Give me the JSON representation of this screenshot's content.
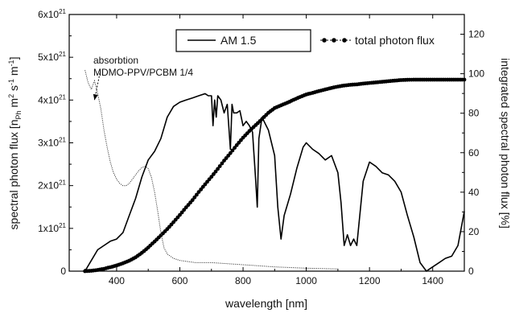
{
  "chart_data": {
    "type": "line",
    "xlabel": "wavelength [nm]",
    "ylabel_left_parts": [
      "spectral photon flux [n",
      "Ph",
      " m",
      "2",
      " s",
      "-1",
      " m",
      "-1",
      "]"
    ],
    "ylabel_right": "integrated spectral photon flux [%]",
    "xlim": [
      250,
      1500
    ],
    "ylim_left": [
      0,
      6
    ],
    "ylim_right": [
      0,
      130
    ],
    "x_ticks": [
      {
        "value": 400,
        "label": "400"
      },
      {
        "value": 600,
        "label": "600"
      },
      {
        "value": 800,
        "label": "800"
      },
      {
        "value": 1000,
        "label": "1000"
      },
      {
        "value": 1200,
        "label": "1200"
      },
      {
        "value": 1400,
        "label": "1400"
      }
    ],
    "y_left_ticks": [
      {
        "value": 0,
        "label": "0",
        "exp": ""
      },
      {
        "value": 1,
        "label": "1x10",
        "exp": "21"
      },
      {
        "value": 2,
        "label": "2x10",
        "exp": "21"
      },
      {
        "value": 3,
        "label": "3x10",
        "exp": "21"
      },
      {
        "value": 4,
        "label": "4x10",
        "exp": "21"
      },
      {
        "value": 5,
        "label": "5x10",
        "exp": "21"
      },
      {
        "value": 6,
        "label": "6x10",
        "exp": "21"
      }
    ],
    "y_right_ticks": [
      {
        "value": 0,
        "label": "0"
      },
      {
        "value": 20,
        "label": "20"
      },
      {
        "value": 40,
        "label": "40"
      },
      {
        "value": 60,
        "label": "60"
      },
      {
        "value": 80,
        "label": "80"
      },
      {
        "value": 100,
        "label": "100"
      },
      {
        "value": 120,
        "label": "120"
      }
    ],
    "legend": {
      "am15": "AM 1.5",
      "total": "total photon flux"
    },
    "annotation": {
      "line1": "absorbtion",
      "line2": "MDMO-PPV/PCBM 1/4",
      "arrow_from": [
        347,
        4.63
      ],
      "arrow_to": [
        330,
        4.0
      ]
    },
    "series": [
      {
        "name": "AM 1.5",
        "axis": "left",
        "style": "solid",
        "color": "#000000",
        "x": [
          300,
          320,
          340,
          360,
          380,
          400,
          420,
          440,
          460,
          480,
          500,
          520,
          540,
          560,
          580,
          600,
          620,
          640,
          660,
          680,
          690,
          700,
          705,
          710,
          715,
          720,
          730,
          740,
          750,
          760,
          765,
          770,
          780,
          790,
          800,
          810,
          820,
          830,
          840,
          845,
          850,
          860,
          870,
          880,
          890,
          900,
          910,
          920,
          930,
          950,
          970,
          990,
          1000,
          1020,
          1040,
          1060,
          1080,
          1100,
          1110,
          1120,
          1130,
          1140,
          1150,
          1160,
          1180,
          1200,
          1220,
          1240,
          1260,
          1280,
          1300,
          1320,
          1340,
          1360,
          1380,
          1390,
          1400,
          1420,
          1440,
          1460,
          1480,
          1500
        ],
        "y": [
          0,
          0.25,
          0.5,
          0.6,
          0.7,
          0.75,
          0.9,
          1.3,
          1.7,
          2.2,
          2.6,
          2.8,
          3.1,
          3.6,
          3.85,
          3.95,
          4.0,
          4.05,
          4.1,
          4.15,
          4.1,
          4.1,
          3.4,
          4.0,
          3.6,
          4.1,
          4.0,
          3.7,
          3.9,
          2.85,
          3.9,
          3.7,
          3.7,
          3.75,
          3.4,
          3.5,
          3.4,
          3.25,
          2.1,
          1.5,
          3.1,
          3.6,
          3.45,
          3.3,
          3.0,
          2.7,
          1.5,
          0.75,
          1.3,
          1.8,
          2.4,
          2.9,
          3.0,
          2.85,
          2.75,
          2.6,
          2.7,
          2.3,
          1.6,
          0.6,
          0.85,
          0.6,
          0.75,
          0.6,
          2.1,
          2.55,
          2.45,
          2.3,
          2.25,
          2.1,
          1.85,
          1.3,
          0.8,
          0.2,
          0.0,
          0.05,
          0.1,
          0.2,
          0.3,
          0.35,
          0.6,
          1.4
        ]
      },
      {
        "name": "total photon flux",
        "axis": "right",
        "style": "dotted-markers",
        "color": "#000000",
        "x": [
          300,
          320,
          340,
          360,
          380,
          400,
          420,
          440,
          460,
          480,
          500,
          520,
          540,
          560,
          580,
          600,
          620,
          640,
          660,
          680,
          700,
          720,
          740,
          760,
          780,
          800,
          820,
          840,
          860,
          880,
          900,
          920,
          940,
          960,
          980,
          1000,
          1020,
          1040,
          1060,
          1080,
          1100,
          1120,
          1140,
          1160,
          1180,
          1200,
          1220,
          1240,
          1260,
          1280,
          1300,
          1320,
          1340,
          1360,
          1380,
          1400,
          1420,
          1440,
          1460,
          1480,
          1500
        ],
        "y": [
          0,
          0.2,
          0.6,
          1.2,
          2.0,
          2.9,
          4.0,
          5.3,
          7.0,
          9.3,
          12.0,
          15.0,
          18.1,
          21.3,
          24.8,
          28.5,
          32.3,
          36.0,
          40.1,
          44.0,
          47.8,
          51.8,
          56.0,
          59.8,
          63.8,
          67.6,
          71.0,
          74.0,
          77.0,
          80.2,
          82.6,
          84.0,
          85.3,
          86.8,
          88.2,
          89.5,
          90.3,
          91.2,
          92.0,
          92.8,
          93.5,
          94.0,
          94.4,
          94.6,
          95.0,
          95.3,
          95.6,
          95.9,
          96.2,
          96.5,
          96.8,
          96.9,
          97.0,
          97.0,
          97.0,
          97.0,
          97.0,
          97.0,
          97.0,
          97.0,
          97.0
        ]
      },
      {
        "name": "absorbtion MDMO-PPV/PCBM 1/4",
        "axis": "left",
        "style": "dotted",
        "color": "#000000",
        "x": [
          300,
          310,
          320,
          330,
          340,
          350,
          360,
          370,
          380,
          390,
          400,
          410,
          420,
          430,
          440,
          450,
          460,
          470,
          480,
          490,
          500,
          510,
          520,
          530,
          540,
          550,
          560,
          580,
          600,
          650,
          700,
          800,
          900,
          1000,
          1100
        ],
        "y": [
          4.7,
          4.4,
          4.25,
          4.45,
          4.15,
          3.8,
          3.3,
          2.9,
          2.55,
          2.3,
          2.15,
          2.05,
          2.0,
          2.0,
          2.05,
          2.15,
          2.25,
          2.35,
          2.42,
          2.45,
          2.4,
          2.2,
          1.85,
          1.4,
          0.9,
          0.55,
          0.4,
          0.3,
          0.25,
          0.2,
          0.2,
          0.15,
          0.1,
          0.07,
          0.05
        ]
      }
    ]
  }
}
